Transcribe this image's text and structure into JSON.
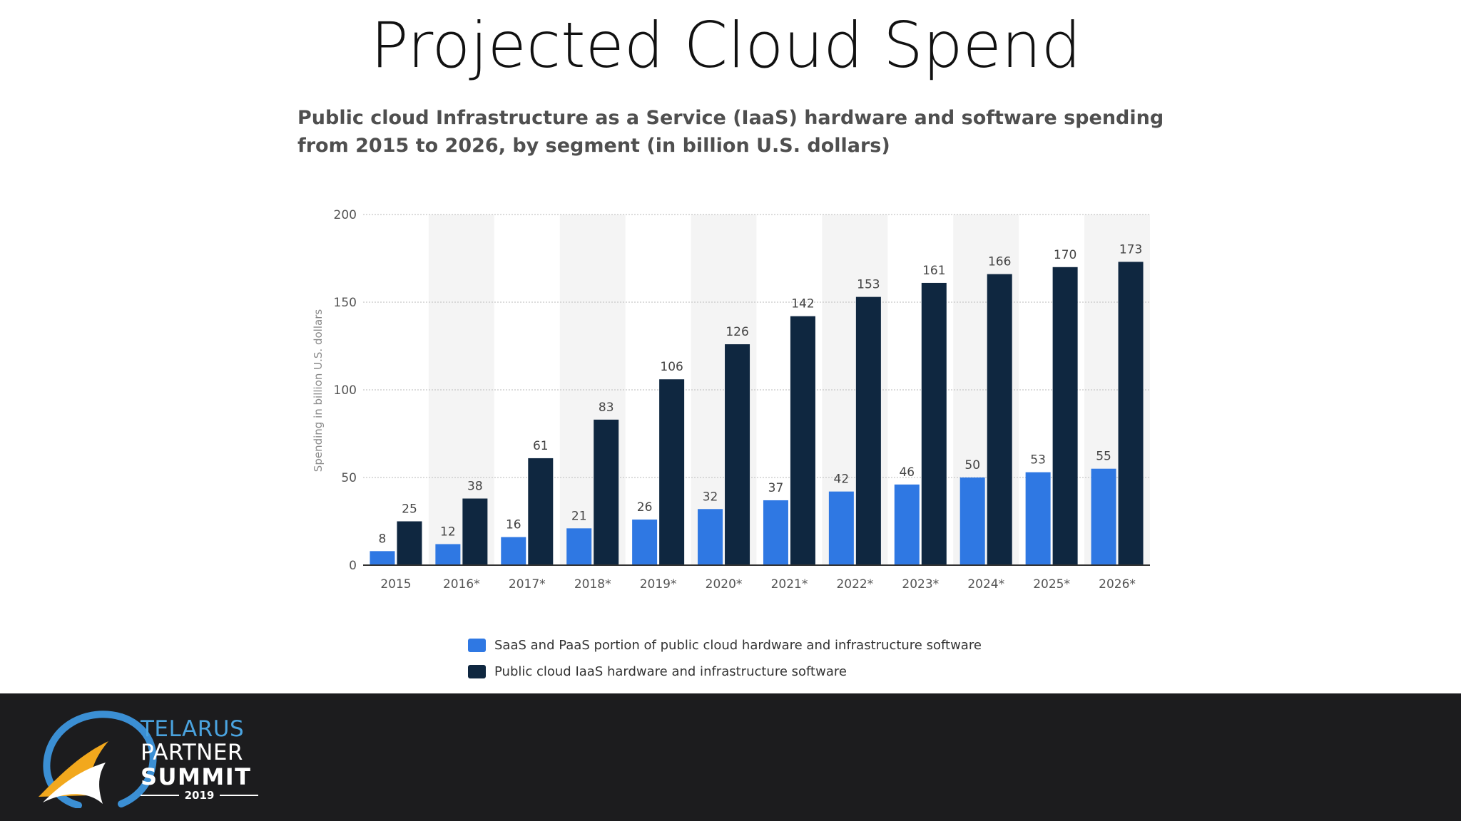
{
  "slide": {
    "title": "Projected Cloud Spend"
  },
  "chart_data": {
    "type": "bar",
    "title": "Public cloud Infrastructure as a Service (IaaS) hardware and software spending from 2015 to 2026, by segment (in billion U.S. dollars)",
    "xlabel": "",
    "ylabel": "Spending in billion U.S. dollars",
    "ylim": [
      0,
      200
    ],
    "yticks": [
      0,
      50,
      100,
      150,
      200
    ],
    "grid": true,
    "legend_position": "bottom",
    "categories": [
      "2015",
      "2016*",
      "2017*",
      "2018*",
      "2019*",
      "2020*",
      "2021*",
      "2022*",
      "2023*",
      "2024*",
      "2025*",
      "2026*"
    ],
    "series": [
      {
        "name": "SaaS and PaaS portion of public cloud hardware and infrastructure software",
        "color": "#2f78e3",
        "values": [
          8,
          12,
          16,
          21,
          26,
          32,
          37,
          42,
          46,
          50,
          53,
          55
        ]
      },
      {
        "name": "Public cloud IaaS hardware and infrastructure software",
        "color": "#0f2740",
        "values": [
          25,
          38,
          61,
          83,
          106,
          126,
          142,
          153,
          161,
          166,
          170,
          173
        ]
      }
    ]
  },
  "footer": {
    "logo_line1": "TELARUS",
    "logo_line2": "PARTNER",
    "logo_line3": "SUMMIT",
    "logo_year": "2019"
  }
}
